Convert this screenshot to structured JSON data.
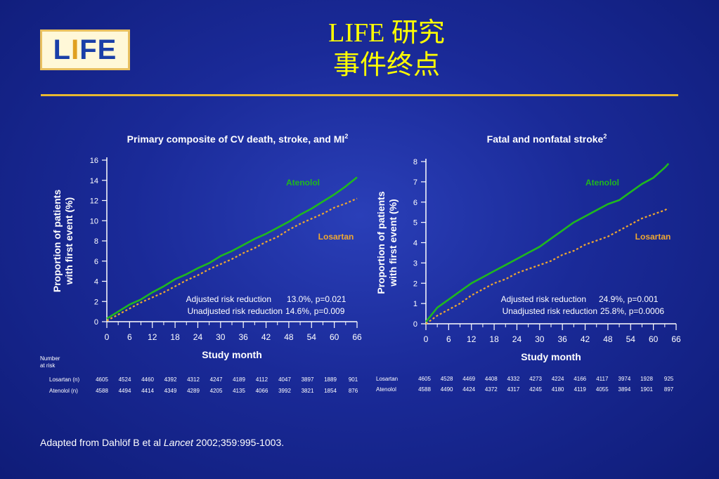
{
  "logo": {
    "text_l": "L",
    "text_i": "I",
    "text_fe": "FE"
  },
  "title": {
    "line1": "LIFE 研究",
    "line2": "事件终点"
  },
  "footer": {
    "prefix": "Adapted from Dahlöf B et al ",
    "journal": "Lancet",
    "suffix": " 2002;359:995-1003."
  },
  "number_at_risk_label": [
    "Number",
    "at risk"
  ],
  "colors": {
    "atenolol": "#1fb81f",
    "losartan": "#f0a830",
    "title": "#ffff00",
    "rule": "#e8b830"
  },
  "chart_data": [
    {
      "type": "line",
      "title": "Primary composite of CV death, stroke, and MI",
      "title_sup": "2",
      "xlabel": "Study month",
      "ylabel": [
        "Proportion of patients",
        "with first event (%)"
      ],
      "xlim": [
        0,
        66
      ],
      "ylim": [
        0,
        16
      ],
      "xticks": [
        0,
        6,
        12,
        18,
        24,
        30,
        36,
        42,
        48,
        54,
        60,
        66
      ],
      "yticks": [
        0,
        2,
        4,
        6,
        8,
        10,
        12,
        14,
        16
      ],
      "series": [
        {
          "name": "Atenolol",
          "style": "solid",
          "x": [
            0,
            3,
            6,
            9,
            12,
            15,
            18,
            21,
            24,
            27,
            30,
            33,
            36,
            39,
            42,
            45,
            48,
            51,
            54,
            57,
            60,
            63,
            66
          ],
          "y": [
            0.3,
            1.0,
            1.7,
            2.2,
            2.9,
            3.5,
            4.2,
            4.7,
            5.3,
            5.8,
            6.5,
            7.0,
            7.6,
            8.2,
            8.7,
            9.3,
            9.9,
            10.6,
            11.2,
            11.9,
            12.6,
            13.4,
            14.3
          ]
        },
        {
          "name": "Losartan",
          "style": "dashed",
          "x": [
            0,
            3,
            6,
            9,
            12,
            15,
            18,
            21,
            24,
            27,
            30,
            33,
            36,
            39,
            42,
            45,
            48,
            51,
            54,
            57,
            60,
            63,
            66
          ],
          "y": [
            0.1,
            0.7,
            1.3,
            1.9,
            2.4,
            2.9,
            3.5,
            4.1,
            4.6,
            5.2,
            5.7,
            6.2,
            6.8,
            7.3,
            7.9,
            8.4,
            9.1,
            9.7,
            10.2,
            10.7,
            11.3,
            11.7,
            12.2
          ]
        }
      ],
      "annotations": {
        "line1_label": "Adjusted risk reduction",
        "line1_value": "13.0%, p=0.021",
        "line2_label": "Unadjusted risk reduction",
        "line2_value": "14.6%, p=0.009"
      },
      "at_risk": {
        "rows": [
          {
            "label": "Losartan (n)",
            "values": [
              "4605",
              "4524",
              "4460",
              "4392",
              "4312",
              "4247",
              "4189",
              "4112",
              "4047",
              "3897",
              "1889",
              "901"
            ]
          },
          {
            "label": "Atenolol (n)",
            "values": [
              "4588",
              "4494",
              "4414",
              "4349",
              "4289",
              "4205",
              "4135",
              "4066",
              "3992",
              "3821",
              "1854",
              "876"
            ]
          }
        ]
      }
    },
    {
      "type": "line",
      "title": "Fatal and nonfatal stroke",
      "title_sup": "2",
      "xlabel": "Study month",
      "ylabel": [
        "Proportion of patients",
        "with first event (%)"
      ],
      "xlim": [
        0,
        66
      ],
      "ylim": [
        0,
        8
      ],
      "xticks": [
        0,
        6,
        12,
        18,
        24,
        30,
        36,
        42,
        48,
        54,
        60,
        66
      ],
      "yticks": [
        0,
        1,
        2,
        3,
        4,
        5,
        6,
        7,
        8
      ],
      "series": [
        {
          "name": "Atenolol",
          "style": "solid",
          "x": [
            0,
            3,
            6,
            9,
            12,
            15,
            18,
            21,
            24,
            27,
            30,
            33,
            36,
            39,
            42,
            45,
            48,
            51,
            54,
            57,
            60,
            63,
            64
          ],
          "y": [
            0.1,
            0.8,
            1.2,
            1.6,
            2.0,
            2.3,
            2.6,
            2.9,
            3.2,
            3.5,
            3.8,
            4.2,
            4.6,
            5.0,
            5.3,
            5.6,
            5.9,
            6.1,
            6.5,
            6.9,
            7.2,
            7.7,
            7.9
          ]
        },
        {
          "name": "Losartan",
          "style": "dashed",
          "x": [
            0,
            3,
            6,
            9,
            12,
            15,
            18,
            21,
            24,
            27,
            30,
            33,
            36,
            39,
            42,
            45,
            48,
            51,
            54,
            57,
            60,
            63,
            64
          ],
          "y": [
            0.0,
            0.4,
            0.7,
            1.0,
            1.4,
            1.7,
            2.0,
            2.2,
            2.5,
            2.7,
            2.9,
            3.1,
            3.4,
            3.6,
            3.9,
            4.1,
            4.3,
            4.6,
            4.9,
            5.2,
            5.4,
            5.6,
            5.7
          ]
        }
      ],
      "annotations": {
        "line1_label": "Adjusted risk reduction",
        "line1_value": "24.9%, p=0.001",
        "line2_label": "Unadjusted risk reduction",
        "line2_value": "25.8%, p=0.0006"
      },
      "at_risk": {
        "rows": [
          {
            "label": "Losartan",
            "values": [
              "4605",
              "4528",
              "4469",
              "4408",
              "4332",
              "4273",
              "4224",
              "4166",
              "4117",
              "3974",
              "1928",
              "925"
            ]
          },
          {
            "label": "Atenolol",
            "values": [
              "4588",
              "4490",
              "4424",
              "4372",
              "4317",
              "4245",
              "4180",
              "4119",
              "4055",
              "3894",
              "1901",
              "897"
            ]
          }
        ]
      }
    }
  ]
}
